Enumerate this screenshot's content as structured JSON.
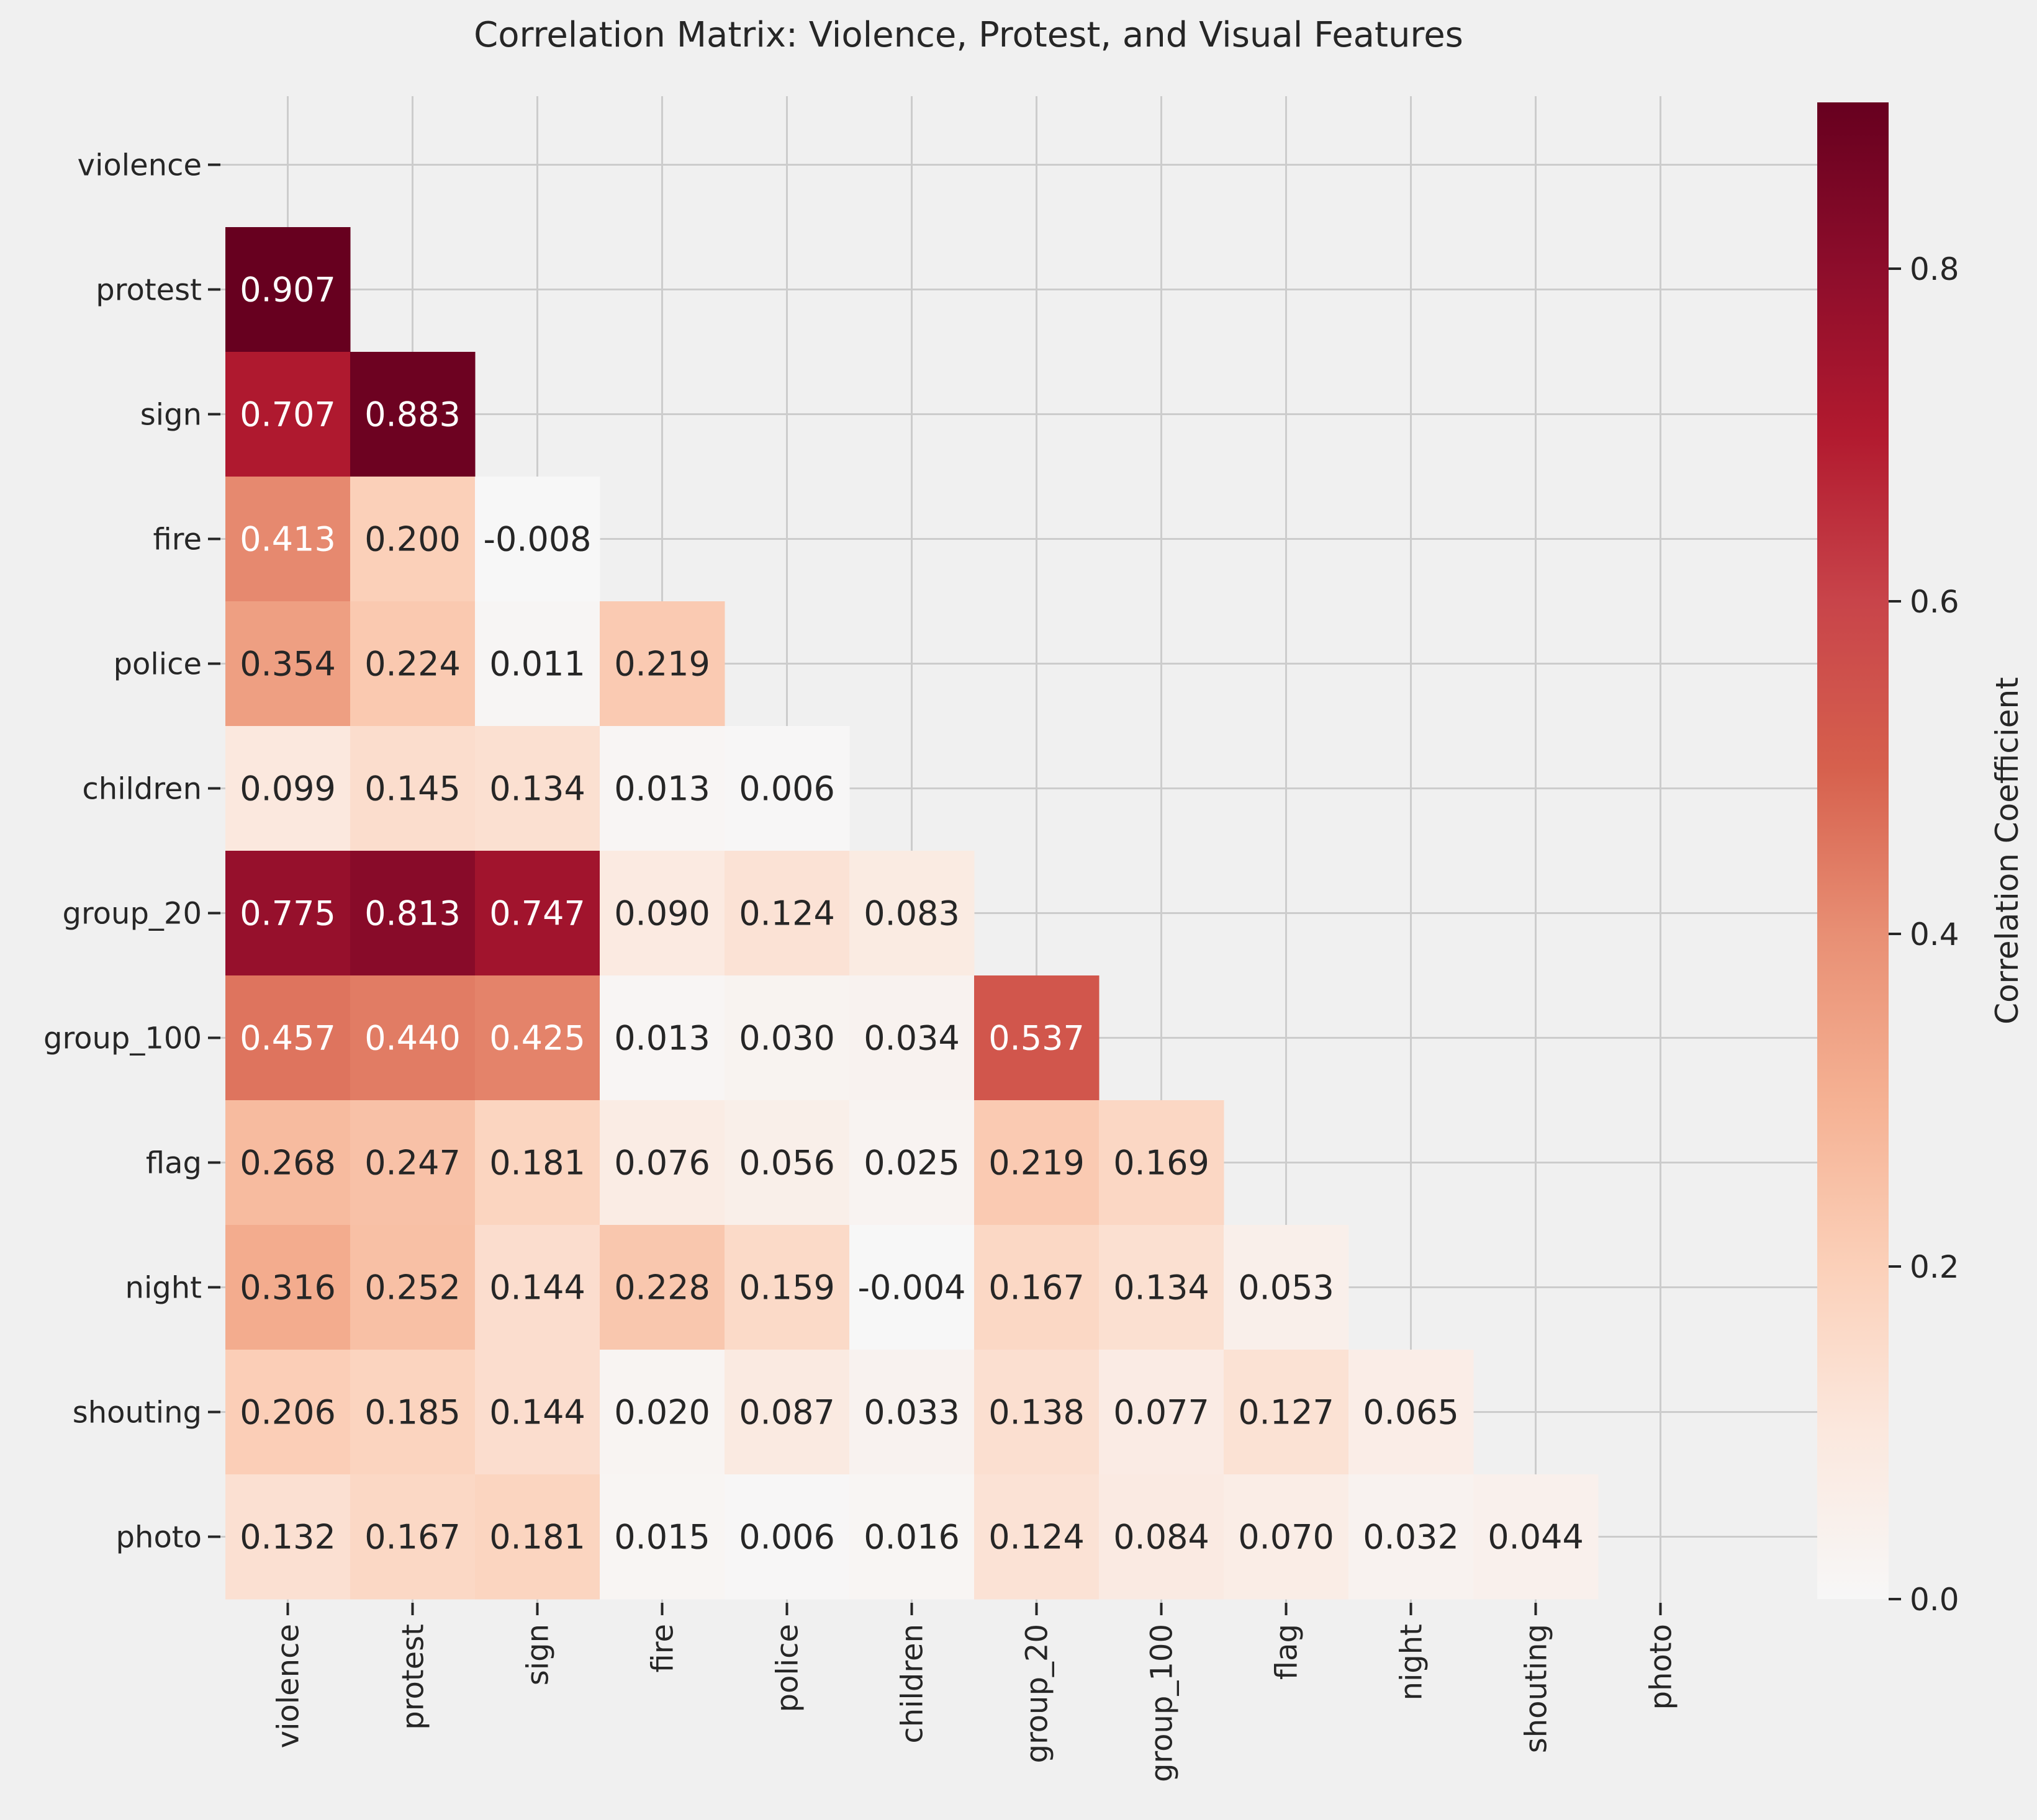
{
  "chart_data": {
    "type": "heatmap",
    "title": "Correlation Matrix: Violence, Protest, and Visual Features",
    "variables": [
      "violence",
      "protest",
      "sign",
      "fire",
      "police",
      "children",
      "group_20",
      "group_100",
      "flag",
      "night",
      "shouting",
      "photo"
    ],
    "mask": "upper-triangle-including-diagonal",
    "cells": [
      {
        "row": "protest",
        "col": "violence",
        "value": 0.907,
        "label": "0.907"
      },
      {
        "row": "sign",
        "col": "violence",
        "value": 0.707,
        "label": "0.707"
      },
      {
        "row": "sign",
        "col": "protest",
        "value": 0.883,
        "label": "0.883"
      },
      {
        "row": "fire",
        "col": "violence",
        "value": 0.413,
        "label": "0.413"
      },
      {
        "row": "fire",
        "col": "protest",
        "value": 0.2,
        "label": "0.200"
      },
      {
        "row": "fire",
        "col": "sign",
        "value": -0.008,
        "label": "-0.008"
      },
      {
        "row": "police",
        "col": "violence",
        "value": 0.354,
        "label": "0.354"
      },
      {
        "row": "police",
        "col": "protest",
        "value": 0.224,
        "label": "0.224"
      },
      {
        "row": "police",
        "col": "sign",
        "value": 0.011,
        "label": "0.011"
      },
      {
        "row": "police",
        "col": "fire",
        "value": 0.219,
        "label": "0.219"
      },
      {
        "row": "children",
        "col": "violence",
        "value": 0.099,
        "label": "0.099"
      },
      {
        "row": "children",
        "col": "protest",
        "value": 0.145,
        "label": "0.145"
      },
      {
        "row": "children",
        "col": "sign",
        "value": 0.134,
        "label": "0.134"
      },
      {
        "row": "children",
        "col": "fire",
        "value": 0.013,
        "label": "0.013"
      },
      {
        "row": "children",
        "col": "police",
        "value": 0.006,
        "label": "0.006"
      },
      {
        "row": "group_20",
        "col": "violence",
        "value": 0.775,
        "label": "0.775"
      },
      {
        "row": "group_20",
        "col": "protest",
        "value": 0.813,
        "label": "0.813"
      },
      {
        "row": "group_20",
        "col": "sign",
        "value": 0.747,
        "label": "0.747"
      },
      {
        "row": "group_20",
        "col": "fire",
        "value": 0.09,
        "label": "0.090"
      },
      {
        "row": "group_20",
        "col": "police",
        "value": 0.124,
        "label": "0.124"
      },
      {
        "row": "group_20",
        "col": "children",
        "value": 0.083,
        "label": "0.083"
      },
      {
        "row": "group_100",
        "col": "violence",
        "value": 0.457,
        "label": "0.457"
      },
      {
        "row": "group_100",
        "col": "protest",
        "value": 0.44,
        "label": "0.440"
      },
      {
        "row": "group_100",
        "col": "sign",
        "value": 0.425,
        "label": "0.425"
      },
      {
        "row": "group_100",
        "col": "fire",
        "value": 0.013,
        "label": "0.013"
      },
      {
        "row": "group_100",
        "col": "police",
        "value": 0.03,
        "label": "0.030"
      },
      {
        "row": "group_100",
        "col": "children",
        "value": 0.034,
        "label": "0.034"
      },
      {
        "row": "group_100",
        "col": "group_20",
        "value": 0.537,
        "label": "0.537"
      },
      {
        "row": "flag",
        "col": "violence",
        "value": 0.268,
        "label": "0.268"
      },
      {
        "row": "flag",
        "col": "protest",
        "value": 0.247,
        "label": "0.247"
      },
      {
        "row": "flag",
        "col": "sign",
        "value": 0.181,
        "label": "0.181"
      },
      {
        "row": "flag",
        "col": "fire",
        "value": 0.076,
        "label": "0.076"
      },
      {
        "row": "flag",
        "col": "police",
        "value": 0.056,
        "label": "0.056"
      },
      {
        "row": "flag",
        "col": "children",
        "value": 0.025,
        "label": "0.025"
      },
      {
        "row": "flag",
        "col": "group_20",
        "value": 0.219,
        "label": "0.219"
      },
      {
        "row": "flag",
        "col": "group_100",
        "value": 0.169,
        "label": "0.169"
      },
      {
        "row": "night",
        "col": "violence",
        "value": 0.316,
        "label": "0.316"
      },
      {
        "row": "night",
        "col": "protest",
        "value": 0.252,
        "label": "0.252"
      },
      {
        "row": "night",
        "col": "sign",
        "value": 0.144,
        "label": "0.144"
      },
      {
        "row": "night",
        "col": "fire",
        "value": 0.228,
        "label": "0.228"
      },
      {
        "row": "night",
        "col": "police",
        "value": 0.159,
        "label": "0.159"
      },
      {
        "row": "night",
        "col": "children",
        "value": -0.004,
        "label": "-0.004"
      },
      {
        "row": "night",
        "col": "group_20",
        "value": 0.167,
        "label": "0.167"
      },
      {
        "row": "night",
        "col": "group_100",
        "value": 0.134,
        "label": "0.134"
      },
      {
        "row": "night",
        "col": "flag",
        "value": 0.053,
        "label": "0.053"
      },
      {
        "row": "shouting",
        "col": "violence",
        "value": 0.206,
        "label": "0.206"
      },
      {
        "row": "shouting",
        "col": "protest",
        "value": 0.185,
        "label": "0.185"
      },
      {
        "row": "shouting",
        "col": "sign",
        "value": 0.144,
        "label": "0.144"
      },
      {
        "row": "shouting",
        "col": "fire",
        "value": 0.02,
        "label": "0.020"
      },
      {
        "row": "shouting",
        "col": "police",
        "value": 0.087,
        "label": "0.087"
      },
      {
        "row": "shouting",
        "col": "children",
        "value": 0.033,
        "label": "0.033"
      },
      {
        "row": "shouting",
        "col": "group_20",
        "value": 0.138,
        "label": "0.138"
      },
      {
        "row": "shouting",
        "col": "group_100",
        "value": 0.077,
        "label": "0.077"
      },
      {
        "row": "shouting",
        "col": "flag",
        "value": 0.127,
        "label": "0.127"
      },
      {
        "row": "shouting",
        "col": "night",
        "value": 0.065,
        "label": "0.065"
      },
      {
        "row": "photo",
        "col": "violence",
        "value": 0.132,
        "label": "0.132"
      },
      {
        "row": "photo",
        "col": "protest",
        "value": 0.167,
        "label": "0.167"
      },
      {
        "row": "photo",
        "col": "sign",
        "value": 0.181,
        "label": "0.181"
      },
      {
        "row": "photo",
        "col": "fire",
        "value": 0.015,
        "label": "0.015"
      },
      {
        "row": "photo",
        "col": "police",
        "value": 0.006,
        "label": "0.006"
      },
      {
        "row": "photo",
        "col": "children",
        "value": 0.016,
        "label": "0.016"
      },
      {
        "row": "photo",
        "col": "group_20",
        "value": 0.124,
        "label": "0.124"
      },
      {
        "row": "photo",
        "col": "group_100",
        "value": 0.084,
        "label": "0.084"
      },
      {
        "row": "photo",
        "col": "flag",
        "value": 0.07,
        "label": "0.070"
      },
      {
        "row": "photo",
        "col": "night",
        "value": 0.032,
        "label": "0.032"
      },
      {
        "row": "photo",
        "col": "shouting",
        "value": 0.044,
        "label": "0.044"
      }
    ],
    "colorbar": {
      "label": "Correlation Coefficient",
      "range": [
        0,
        0.9
      ],
      "ticks": [
        {
          "value": 0.0,
          "label": "0.0"
        },
        {
          "value": 0.2,
          "label": "0.2"
        },
        {
          "value": 0.4,
          "label": "0.4"
        },
        {
          "value": 0.6,
          "label": "0.6"
        },
        {
          "value": 0.8,
          "label": "0.8"
        }
      ]
    },
    "colormap": "RdBu_r",
    "colormap_stops": [
      {
        "value": 0.0,
        "color": "#f7f7f7"
      },
      {
        "value": 0.1,
        "color": "#fbe8de"
      },
      {
        "value": 0.2,
        "color": "#fbd0b9"
      },
      {
        "value": 0.3,
        "color": "#f5b193"
      },
      {
        "value": 0.4,
        "color": "#e88f74"
      },
      {
        "value": 0.5,
        "color": "#d6604d"
      },
      {
        "value": 0.6,
        "color": "#c8444a"
      },
      {
        "value": 0.7,
        "color": "#b21a2f"
      },
      {
        "value": 0.8,
        "color": "#8d0d2b"
      },
      {
        "value": 0.9,
        "color": "#67001f"
      }
    ],
    "grid": true,
    "legend_position": "right",
    "background_color": "#f0f0f0",
    "grid_color": "#cccccc",
    "text_color": "#262626"
  }
}
